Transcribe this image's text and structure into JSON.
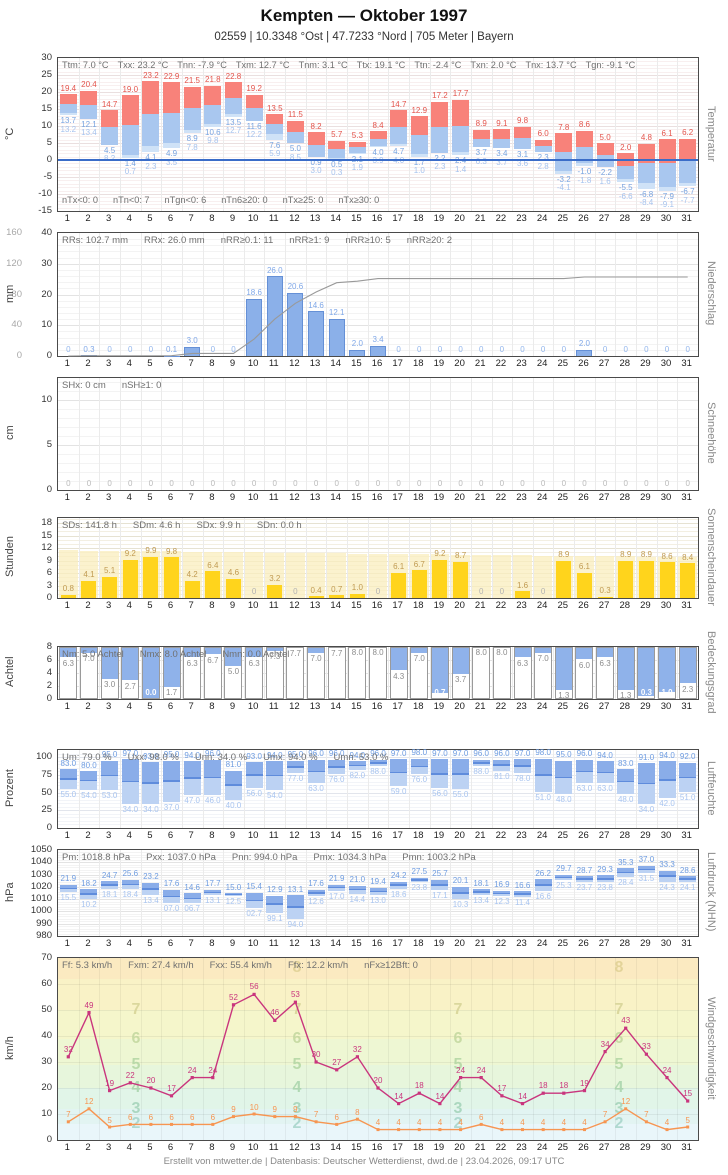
{
  "header": {
    "title": "Kempten  —  Oktober 1997",
    "subtitle": "02559  |  10.3348 °Ost  |  47.7233 °Nord  |  705 Meter  |  Bayern"
  },
  "footer": {
    "text": "Erstellt von mtwetter.de | Datenbasis: Deutscher Wetterdienst, dwd.de | 23.04.2026, 09:17 UTC"
  },
  "days": [
    1,
    2,
    3,
    4,
    5,
    6,
    7,
    8,
    9,
    10,
    11,
    12,
    13,
    14,
    15,
    16,
    17,
    18,
    19,
    20,
    21,
    22,
    23,
    24,
    25,
    26,
    27,
    28,
    29,
    30,
    31
  ],
  "chart_data": [
    {
      "id": "temperatur",
      "type": "bar",
      "unit": "°C",
      "right_label": "Temperatur",
      "ylim": [
        -15,
        30
      ],
      "yticks": [
        30,
        25,
        20,
        15,
        10,
        5,
        0,
        -5,
        -10,
        -15
      ],
      "stats_top": [
        "Ttm: 7.0 °C",
        "Txx: 23.2 °C",
        "Tnn: -7.9 °C",
        "Txm: 12.7 °C",
        "Tnm: 3.1 °C",
        "Ttx: 19.1 °C",
        "Ttn: -2.4 °C",
        "Txn: 2.0 °C",
        "Tnx: 13.7 °C",
        "Tgn: -9.1 °C"
      ],
      "stats_bottom": [
        "nTx<0: 0",
        "nTn<0: 7",
        "nTgn<0: 6",
        "nTn6≥20: 0",
        "nTx≥25: 0",
        "nTx≥30: 0"
      ],
      "series": [
        {
          "name": "Tmax",
          "values": [
            19.4,
            20.4,
            14.7,
            19.0,
            23.2,
            22.9,
            21.5,
            21.8,
            22.8,
            19.2,
            13.5,
            11.5,
            8.2,
            5.7,
            5.3,
            8.4,
            14.7,
            12.9,
            17.2,
            17.7,
            8.9,
            9.1,
            9.8,
            6.0,
            7.8,
            8.6,
            5.0,
            2.0,
            4.8,
            6.1,
            6.2
          ]
        },
        {
          "name": "Tmin",
          "values": [
            13.7,
            12.1,
            4.5,
            1.4,
            4.1,
            4.9,
            8.9,
            10.6,
            13.5,
            11.6,
            7.6,
            5.0,
            0.9,
            0.5,
            2.1,
            4.0,
            4.7,
            1.7,
            2.2,
            2.4,
            3.7,
            3.4,
            3.1,
            2.3,
            -3.2,
            -1.0,
            -2.2,
            -5.5,
            -6.8,
            -7.9,
            -6.7
          ]
        },
        {
          "name": "Tmin-Boden",
          "values": [
            13.2,
            13.4,
            8.2,
            0.7,
            2.3,
            3.5,
            7.8,
            9.8,
            12.7,
            12.2,
            5.9,
            8.5,
            3.0,
            0.3,
            1.9,
            3.9,
            4.0,
            1.0,
            2.3,
            1.4,
            6.3,
            3.7,
            3.6,
            2.8,
            -4.1,
            -1.8,
            1.6,
            -6.6,
            -8.4,
            -9.1,
            -7.7
          ]
        }
      ]
    },
    {
      "id": "niederschlag",
      "type": "bar",
      "unit": "mm",
      "right_label": "Niederschlag",
      "ylim": [
        0,
        40
      ],
      "yticks": [
        40,
        30,
        20,
        10,
        0
      ],
      "yticks_secondary": [
        160,
        120,
        80,
        40,
        0
      ],
      "stats": [
        "RRs: 102.7 mm",
        "RRx: 26.0 mm",
        "nRR≥0.1: 11",
        "nRR≥1: 9",
        "nRR≥10: 5",
        "nRR≥20: 2"
      ],
      "values": [
        0,
        0.3,
        0,
        0,
        0,
        0.1,
        3.0,
        0,
        0,
        18.6,
        26.0,
        20.6,
        14.6,
        12.1,
        2.0,
        3.4,
        0,
        0,
        0,
        0,
        0,
        0,
        0,
        0,
        0,
        2.0,
        0,
        0,
        0,
        0,
        0
      ],
      "cumulative_axis_max": 160
    },
    {
      "id": "schneehoehe",
      "type": "bar",
      "unit": "cm",
      "right_label": "Schneehöhe",
      "ylim": [
        0,
        12.4
      ],
      "yticks": [
        10,
        5,
        0
      ],
      "stats": [
        "SHx: 0 cm",
        "nSH≥1: 0"
      ],
      "values": [
        0,
        0,
        0,
        0,
        0,
        0,
        0,
        0,
        0,
        0,
        0,
        0,
        0,
        0,
        0,
        0,
        0,
        0,
        0,
        0,
        0,
        0,
        0,
        0,
        0,
        0,
        0,
        0,
        0,
        0,
        0
      ]
    },
    {
      "id": "sonnenscheindauer",
      "type": "bar",
      "unit": "Stunden",
      "right_label": "Sonnenscheindauer",
      "ylim": [
        0,
        19.2
      ],
      "yticks": [
        18,
        15,
        12,
        9,
        6,
        3,
        0
      ],
      "stats": [
        "SDs: 141.8 h",
        "SDm: 4.6 h",
        "SDx: 9.9 h",
        "SDn: 0.0 h"
      ],
      "values": [
        0.8,
        4.1,
        5.1,
        9.2,
        9.9,
        9.8,
        4.2,
        6.4,
        4.6,
        0,
        3.2,
        0,
        0.4,
        0.7,
        1.0,
        0,
        6.1,
        6.7,
        9.2,
        8.7,
        0,
        0,
        1.6,
        0,
        8.9,
        6.1,
        0.3,
        8.9,
        8.9,
        8.6,
        8.4
      ]
    },
    {
      "id": "bedeckungsgrad",
      "type": "bar",
      "unit": "Achtel",
      "right_label": "Bedeckungsgrad",
      "ylim": [
        0,
        8
      ],
      "yticks": [
        8,
        6,
        4,
        2,
        0
      ],
      "stats": [
        "Nm: 5.0 Achtel",
        "Nmx: 8.0 Achtel",
        "Nmn: 0.0 Achtel"
      ],
      "values": [
        6.3,
        7.0,
        3.0,
        2.7,
        0.0,
        1.7,
        6.3,
        6.7,
        5.0,
        6.3,
        7.3,
        7.7,
        7.0,
        7.7,
        8.0,
        8.0,
        4.3,
        7.0,
        0.7,
        3.7,
        8.0,
        8.0,
        6.3,
        7.0,
        1.3,
        6.0,
        6.3,
        1.3,
        0.3,
        1.0,
        2.3
      ]
    },
    {
      "id": "luftfeuchte",
      "type": "bar",
      "unit": "Prozent",
      "right_label": "Luftfeuchte",
      "ylim": [
        0,
        110
      ],
      "yticks": [
        100,
        75,
        50,
        25,
        0
      ],
      "stats": [
        "Um: 79.0 %",
        "Uxx: 98.0 %",
        "Unn: 34.0 %",
        "Umx: 94.0 %",
        "Umn: 53.0 %"
      ],
      "series": [
        {
          "name": "Umax",
          "values": [
            83,
            80,
            95,
            97,
            93,
            95,
            94,
            96,
            81,
            93,
            94,
            95,
            96,
            96,
            94,
            96,
            97,
            98,
            97,
            97,
            96,
            96,
            97,
            98,
            95,
            96,
            94,
            83,
            91,
            94,
            92
          ]
        },
        {
          "name": "Umin",
          "values": [
            55,
            54,
            53,
            34,
            34,
            37,
            47,
            46,
            40,
            56,
            54,
            77,
            63,
            76,
            82,
            88,
            59,
            76,
            56,
            55,
            88,
            81,
            78,
            51,
            48,
            63,
            63,
            48,
            34,
            42,
            51
          ]
        }
      ]
    },
    {
      "id": "luftdruck",
      "type": "bar",
      "unit": "hPa",
      "right_label": "Luftdruck (NHN)",
      "ylim": [
        980,
        1050
      ],
      "yticks": [
        1050,
        1040,
        1030,
        1020,
        1010,
        1000,
        990,
        980
      ],
      "stats": [
        "Pm: 1018.8 hPa",
        "Pxx: 1037.0 hPa",
        "Pnn: 994.0 hPa",
        "Pmx: 1034.3 hPa",
        "Pmn: 1003.2 hPa"
      ],
      "series": [
        {
          "name": "Pmax",
          "labels": [
            "21.9",
            "18.2",
            "24.7",
            "25.6",
            "23.2",
            "17.6",
            "14.6",
            "17.7",
            "15.0",
            "15.4",
            "12.9",
            "13.1",
            "17.6",
            "21.9",
            "21.0",
            "19.4",
            "24.2",
            "27.5",
            "25.7",
            "20.1",
            "18.1",
            "16.9",
            "16.6",
            "26.2",
            "29.7",
            "28.7",
            "29.3",
            "35.3",
            "37.0",
            "33.3",
            "28.6"
          ]
        },
        {
          "name": "Pmin",
          "labels": [
            "15.5",
            "10.2",
            "18.1",
            "18.4",
            "13.4",
            "07.0",
            "06.7",
            "13.1",
            "12.5",
            "02.7",
            "99.1",
            "94.0",
            "12.6",
            "17.0",
            "14.4",
            "13.0",
            "18.6",
            "23.8",
            "17.1",
            "10.3",
            "13.4",
            "12.3",
            "11.4",
            "16.6",
            "25.3",
            "23.7",
            "23.8",
            "28.4",
            "31.5",
            "24.3",
            "24.1"
          ]
        }
      ]
    },
    {
      "id": "windgeschwindigkeit",
      "type": "line",
      "unit": "km/h",
      "right_label": "Windgeschwindigkeit",
      "ylim": [
        0,
        70
      ],
      "yticks": [
        70,
        60,
        50,
        40,
        30,
        20,
        10,
        0
      ],
      "stats": [
        "Ff: 5.3 km/h",
        "Fxm: 27.4 km/h",
        "Fxx: 55.4 km/h",
        "Ffx: 12.2 km/h",
        "nFx≥12Bft: 0"
      ],
      "beaufort_background_labels": [
        "8",
        "7",
        "6",
        "5",
        "4",
        "3",
        "2"
      ],
      "series": [
        {
          "name": "Boeen",
          "values": [
            32,
            49,
            19,
            22,
            20,
            17,
            24,
            24,
            52,
            56,
            46,
            53,
            30,
            27,
            32,
            20,
            14,
            18,
            14,
            24,
            24,
            17,
            14,
            18,
            18,
            19,
            34,
            43,
            33,
            24,
            15
          ]
        },
        {
          "name": "Mittelwind",
          "values": [
            7,
            12,
            5,
            6,
            6,
            6,
            6,
            6,
            9,
            10,
            9,
            9,
            7,
            6,
            8,
            4,
            4,
            4,
            4,
            4,
            6,
            4,
            4,
            4,
            4,
            4,
            7,
            12,
            7,
            4,
            5
          ]
        }
      ]
    }
  ],
  "colors": {
    "temp_max_bar": "#f8827a",
    "temp_min_bar": "#a9c7ef",
    "temp_ground_bar": "#cfe2f7",
    "temp_max_label": "#e4554d",
    "temp_min_label": "#78a4e0",
    "temp_ground_label": "#a6c3ee",
    "zero_line": "#3a6cc8",
    "rain_bar": "#8bb0e9",
    "rain_border": "#6590d6",
    "rain_label": "#80a8e8",
    "cumulative_line": "#999999",
    "sun_bar": "#ffd41c",
    "sun_label": "#c09a50",
    "daylight_band": "#faeebe",
    "cloud_clear": "#8fb2ea",
    "cloud_border": "#9a9a9a",
    "cloud_label": "#8c8c8c",
    "range_bar_light": "#bcd2f3",
    "range_bar_dark": "#8aade9",
    "mean_line": "#5f8cdc",
    "max_label": "#6f9de1",
    "min_label": "#a9c5f0",
    "gust_line": "#c9357d",
    "wind_mean_line": "#f79551"
  }
}
